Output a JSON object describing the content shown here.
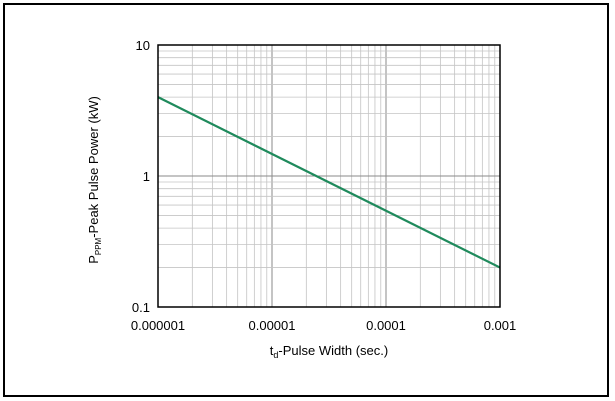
{
  "chart_data": {
    "type": "line",
    "title": "",
    "xlabel": {
      "prefix": "t",
      "subscript": "d",
      "suffix": "-Pulse Width (sec.)"
    },
    "ylabel": {
      "prefix": "P",
      "subscript": "PPM",
      "suffix": "-Peak Pulse Power (kW)"
    },
    "xscale": "log",
    "yscale": "log",
    "xlim": [
      1e-06,
      0.001
    ],
    "ylim": [
      0.1,
      10
    ],
    "xticks": [
      {
        "value": 1e-06,
        "label": "0.000001"
      },
      {
        "value": 1e-05,
        "label": "0.00001"
      },
      {
        "value": 0.0001,
        "label": "0.0001"
      },
      {
        "value": 0.001,
        "label": "0.001"
      }
    ],
    "yticks": [
      {
        "value": 0.1,
        "label": "0.1"
      },
      {
        "value": 1,
        "label": "1"
      },
      {
        "value": 10,
        "label": "10"
      }
    ],
    "grid": true,
    "series": [
      {
        "color": "#1f8a5c",
        "x": [
          1e-06,
          0.001
        ],
        "y": [
          4,
          0.2
        ]
      }
    ]
  }
}
